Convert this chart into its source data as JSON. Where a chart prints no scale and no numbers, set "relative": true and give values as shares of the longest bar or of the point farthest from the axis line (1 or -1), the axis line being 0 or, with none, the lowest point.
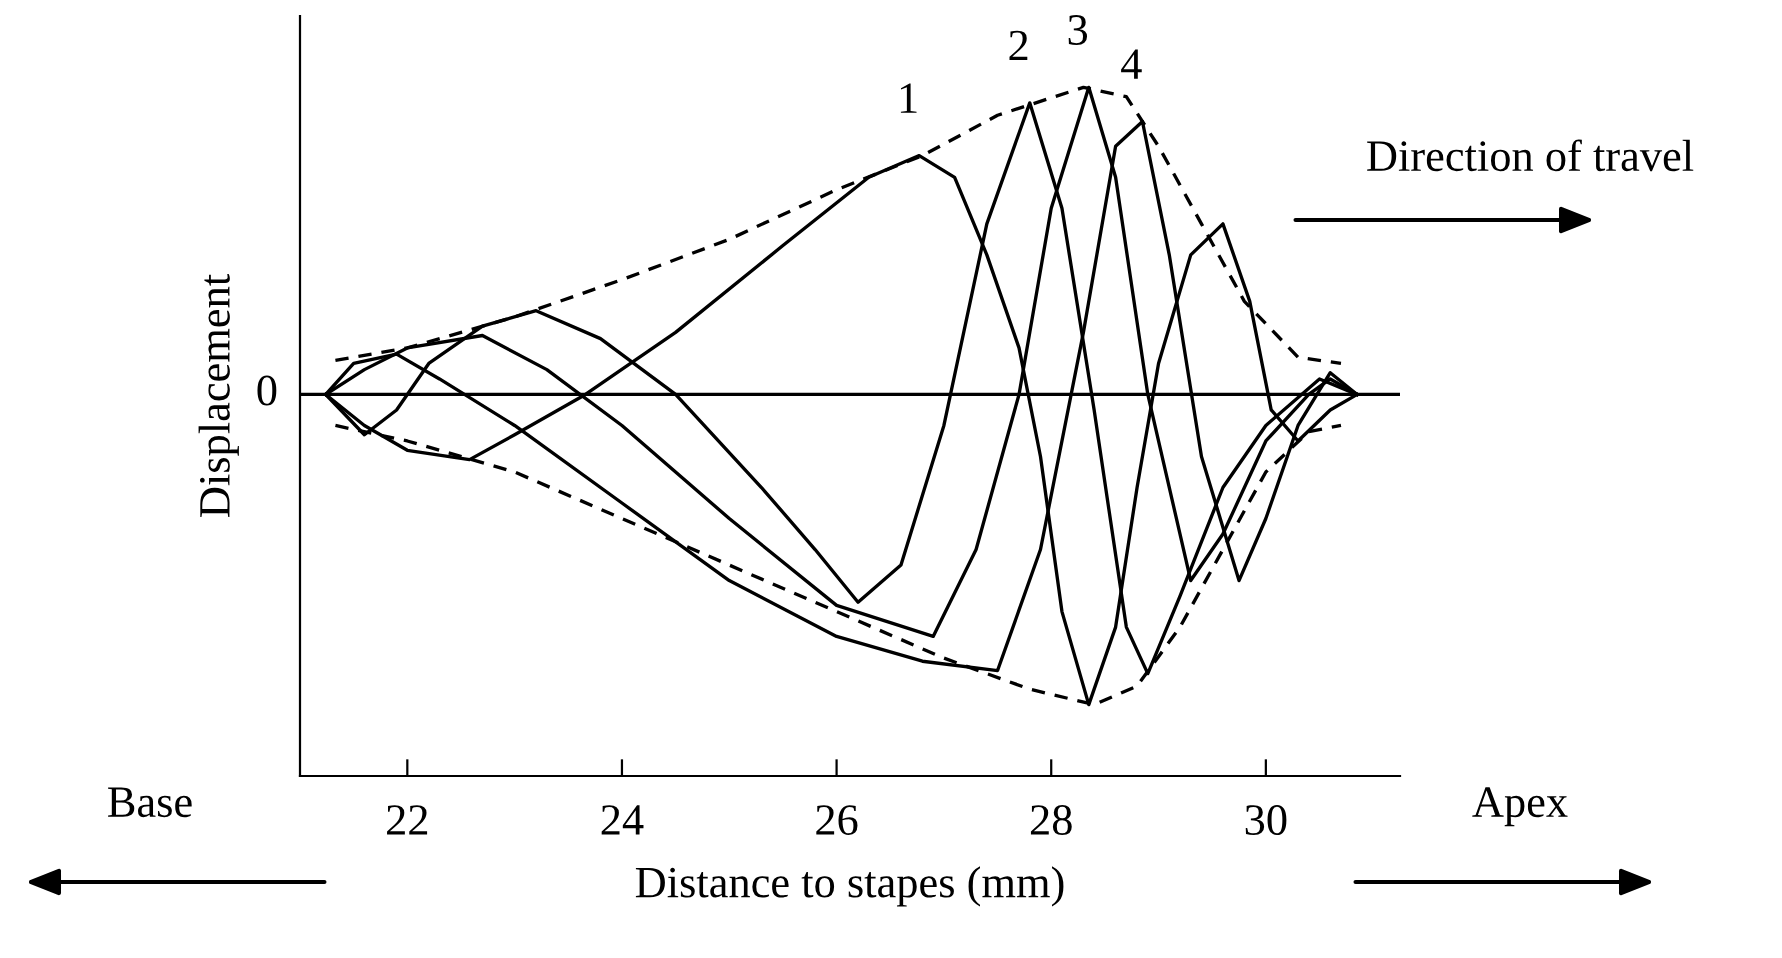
{
  "chart_data": {
    "type": "line",
    "relative": true,
    "xlabel": "Distance to stapes (mm)",
    "ylabel": "Displacement",
    "xlim": [
      21.0,
      31.25
    ],
    "xticks": [
      22,
      24,
      26,
      28,
      30
    ],
    "grid": false,
    "legend": false,
    "marker": "none",
    "ref_lines": [
      {
        "axis": "y",
        "value": 0,
        "label": "0",
        "color": "#000000",
        "line_style": "solid"
      }
    ],
    "annotations": [
      "Base",
      "Apex",
      "Direction of travel"
    ],
    "series": [
      {
        "name": "1",
        "color": "#000000",
        "line_style": "solid",
        "x": [
          21.24,
          21.6,
          22.0,
          22.58,
          23.0,
          23.66,
          24.5,
          25.5,
          26.3,
          26.77,
          27.1,
          27.4,
          27.7,
          27.9,
          28.1,
          28.35,
          28.6,
          28.8,
          29.0,
          29.3,
          29.6,
          29.85,
          30.05,
          30.3,
          30.6,
          30.85
        ],
        "values": [
          0,
          -0.1,
          -0.18,
          -0.21,
          -0.13,
          0,
          0.2,
          0.48,
          0.7,
          0.77,
          0.7,
          0.45,
          0.15,
          -0.2,
          -0.7,
          -1.0,
          -0.75,
          -0.3,
          0.1,
          0.45,
          0.55,
          0.3,
          -0.05,
          -0.15,
          -0.05,
          0
        ]
      },
      {
        "name": "2",
        "color": "#000000",
        "line_style": "solid",
        "x": [
          21.24,
          21.6,
          21.9,
          22.2,
          22.7,
          23.2,
          23.8,
          24.5,
          25.3,
          25.8,
          26.2,
          26.6,
          27.0,
          27.4,
          27.8,
          28.1,
          28.4,
          28.7,
          28.9,
          29.2,
          29.6,
          30.0,
          30.5,
          30.85
        ],
        "values": [
          0,
          -0.13,
          -0.05,
          0.1,
          0.22,
          0.27,
          0.18,
          0,
          -0.3,
          -0.5,
          -0.67,
          -0.55,
          -0.1,
          0.55,
          0.94,
          0.6,
          -0.05,
          -0.75,
          -0.9,
          -0.65,
          -0.3,
          -0.1,
          0.05,
          0
        ]
      },
      {
        "name": "3",
        "color": "#000000",
        "line_style": "solid",
        "x": [
          21.24,
          21.6,
          22.0,
          22.7,
          23.3,
          24.0,
          25.0,
          26.0,
          26.9,
          27.3,
          27.7,
          28.0,
          28.35,
          28.6,
          28.9,
          29.3,
          29.6,
          30.0,
          30.4,
          30.6,
          30.85
        ],
        "values": [
          0,
          0.08,
          0.15,
          0.19,
          0.08,
          -0.1,
          -0.4,
          -0.68,
          -0.78,
          -0.5,
          0.0,
          0.6,
          0.99,
          0.7,
          0.0,
          -0.6,
          -0.45,
          -0.15,
          0.0,
          0.05,
          0
        ]
      },
      {
        "name": "4",
        "color": "#000000",
        "line_style": "solid",
        "x": [
          21.24,
          21.5,
          21.9,
          22.3,
          23.0,
          24.0,
          25.0,
          26.0,
          26.8,
          27.5,
          27.9,
          28.3,
          28.6,
          28.85,
          29.1,
          29.4,
          29.75,
          30.0,
          30.3,
          30.6,
          30.85
        ],
        "values": [
          0,
          0.1,
          0.13,
          0.05,
          -0.1,
          -0.35,
          -0.6,
          -0.78,
          -0.86,
          -0.89,
          -0.5,
          0.2,
          0.8,
          0.88,
          0.45,
          -0.2,
          -0.6,
          -0.4,
          -0.1,
          0.07,
          0
        ]
      },
      {
        "color": "#000000",
        "line_style": "dashed",
        "x": [
          21.33,
          22,
          23,
          24,
          25,
          26,
          26.8,
          27.5,
          28.3,
          28.7,
          29.0,
          29.4,
          29.8,
          30.3,
          30.7
        ],
        "values": [
          0.11,
          0.15,
          0.25,
          0.37,
          0.5,
          0.66,
          0.77,
          0.9,
          0.99,
          0.96,
          0.8,
          0.55,
          0.3,
          0.12,
          0.1
        ]
      },
      {
        "color": "#000000",
        "line_style": "dashed",
        "x": [
          21.33,
          22,
          23,
          24,
          25,
          26,
          27,
          27.8,
          28.4,
          28.8,
          29.2,
          29.6,
          30.0,
          30.4,
          30.7
        ],
        "values": [
          -0.1,
          -0.15,
          -0.25,
          -0.4,
          -0.55,
          -0.7,
          -0.85,
          -0.95,
          -1.0,
          -0.94,
          -0.75,
          -0.5,
          -0.25,
          -0.12,
          -0.1
        ]
      }
    ]
  }
}
